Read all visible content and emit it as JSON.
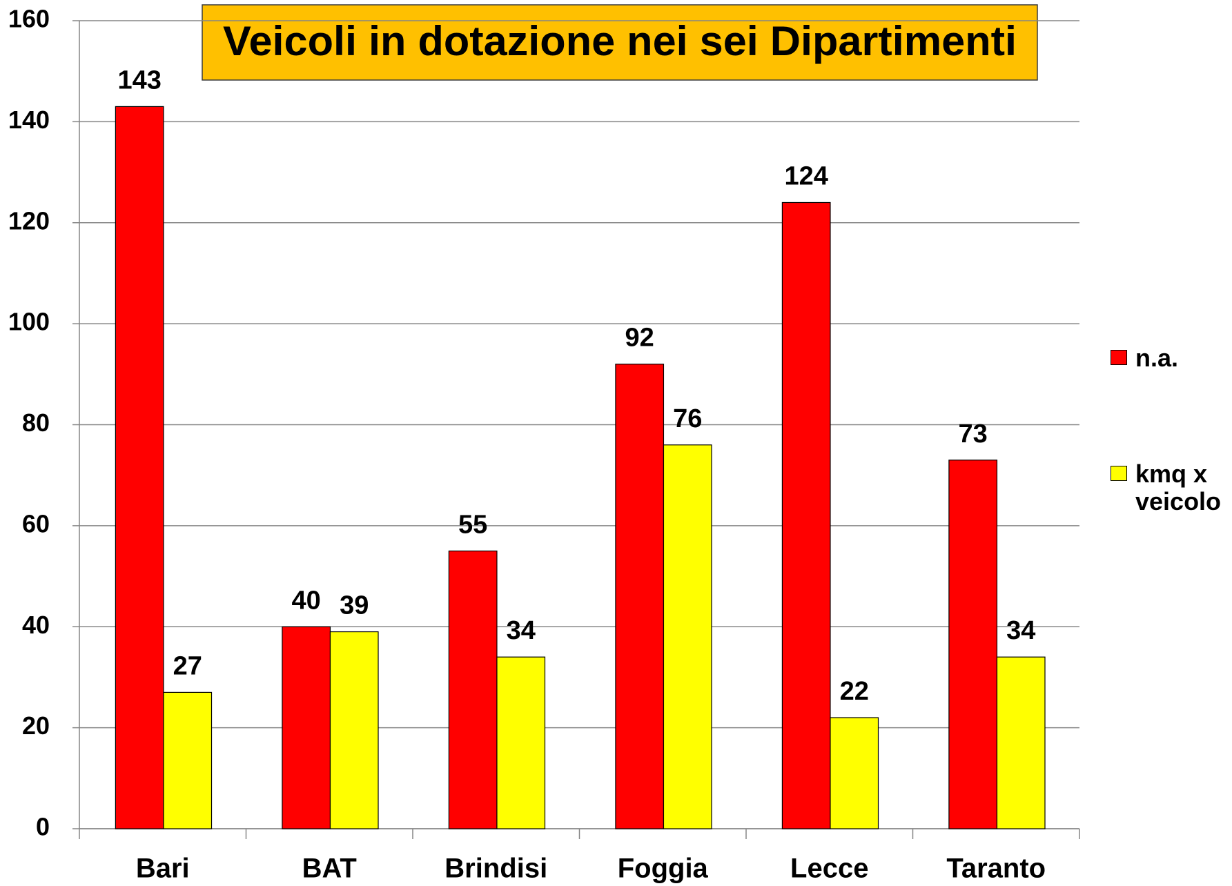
{
  "chart_data": {
    "type": "bar",
    "title": "Veicoli in dotazione nei sei Dipartimenti",
    "categories": [
      "Bari",
      "BAT",
      "Brindisi",
      "Foggia",
      "Lecce",
      "Taranto"
    ],
    "series": [
      {
        "name": "n.a.",
        "color": "#ff0000",
        "values": [
          143,
          40,
          55,
          92,
          124,
          73
        ]
      },
      {
        "name": "kmq x veicolo",
        "color": "#ffff00",
        "values": [
          27,
          39,
          34,
          76,
          22,
          34
        ]
      }
    ],
    "ylim": [
      0,
      160
    ],
    "yticks": [
      0,
      20,
      40,
      60,
      80,
      100,
      120,
      140,
      160
    ],
    "grid": true,
    "legend": "right"
  }
}
